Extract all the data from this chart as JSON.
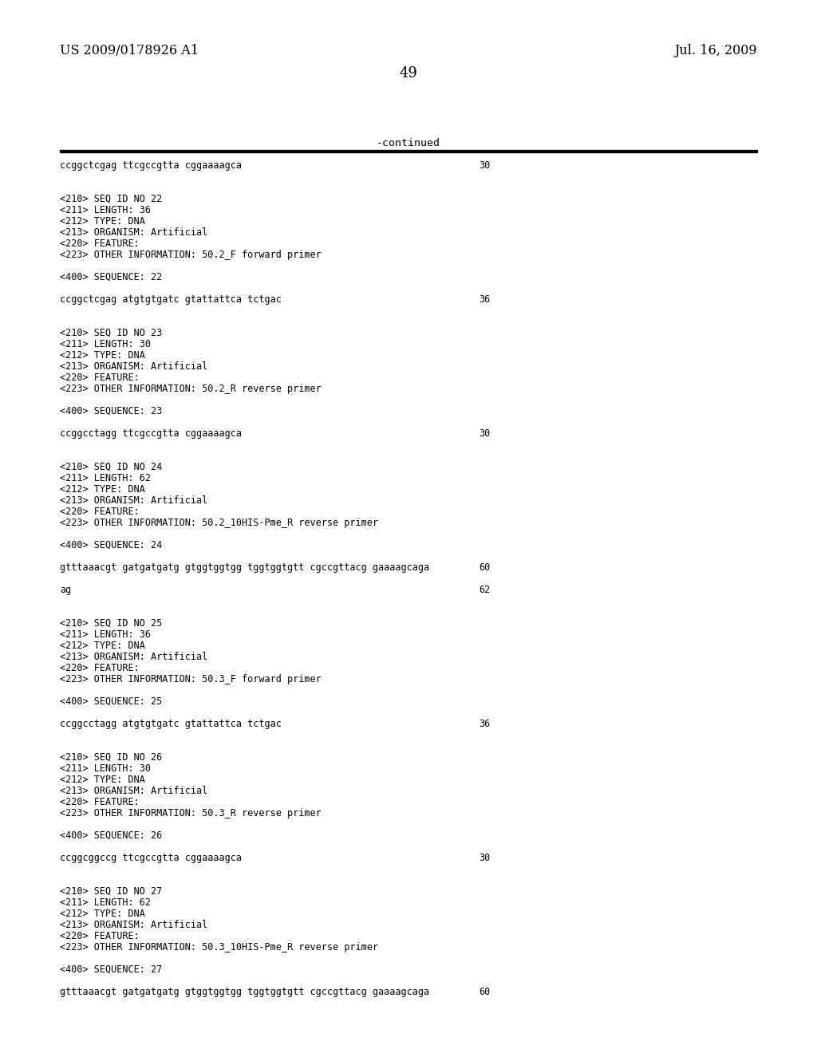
{
  "background_color": "#ffffff",
  "header_left": "US 2009/0178926 A1",
  "header_right": "Jul. 16, 2009",
  "page_number": "49",
  "continued_label": "-continued",
  "content": [
    {
      "type": "sequence",
      "text": "ccggctcgag ttcgccgtta cggaaaagca",
      "number": "30"
    },
    {
      "type": "blank"
    },
    {
      "type": "blank"
    },
    {
      "type": "meta",
      "text": "<210> SEQ ID NO 22"
    },
    {
      "type": "meta",
      "text": "<211> LENGTH: 36"
    },
    {
      "type": "meta",
      "text": "<212> TYPE: DNA"
    },
    {
      "type": "meta",
      "text": "<213> ORGANISM: Artificial"
    },
    {
      "type": "meta",
      "text": "<220> FEATURE:"
    },
    {
      "type": "meta",
      "text": "<223> OTHER INFORMATION: 50.2_F forward primer"
    },
    {
      "type": "blank"
    },
    {
      "type": "meta",
      "text": "<400> SEQUENCE: 22"
    },
    {
      "type": "blank"
    },
    {
      "type": "sequence",
      "text": "ccggctcgag atgtgtgatc gtattattca tctgac",
      "number": "36"
    },
    {
      "type": "blank"
    },
    {
      "type": "blank"
    },
    {
      "type": "meta",
      "text": "<210> SEQ ID NO 23"
    },
    {
      "type": "meta",
      "text": "<211> LENGTH: 30"
    },
    {
      "type": "meta",
      "text": "<212> TYPE: DNA"
    },
    {
      "type": "meta",
      "text": "<213> ORGANISM: Artificial"
    },
    {
      "type": "meta",
      "text": "<220> FEATURE:"
    },
    {
      "type": "meta",
      "text": "<223> OTHER INFORMATION: 50.2_R reverse primer"
    },
    {
      "type": "blank"
    },
    {
      "type": "meta",
      "text": "<400> SEQUENCE: 23"
    },
    {
      "type": "blank"
    },
    {
      "type": "sequence",
      "text": "ccggcctagg ttcgccgtta cggaaaagca",
      "number": "30"
    },
    {
      "type": "blank"
    },
    {
      "type": "blank"
    },
    {
      "type": "meta",
      "text": "<210> SEQ ID NO 24"
    },
    {
      "type": "meta",
      "text": "<211> LENGTH: 62"
    },
    {
      "type": "meta",
      "text": "<212> TYPE: DNA"
    },
    {
      "type": "meta",
      "text": "<213> ORGANISM: Artificial"
    },
    {
      "type": "meta",
      "text": "<220> FEATURE:"
    },
    {
      "type": "meta",
      "text": "<223> OTHER INFORMATION: 50.2_10HIS-Pme_R reverse primer"
    },
    {
      "type": "blank"
    },
    {
      "type": "meta",
      "text": "<400> SEQUENCE: 24"
    },
    {
      "type": "blank"
    },
    {
      "type": "sequence",
      "text": "gtttaaacgt gatgatgatg gtggtggtgg tggtggtgtt cgccgttacg gaaaagcaga",
      "number": "60"
    },
    {
      "type": "blank"
    },
    {
      "type": "sequence",
      "text": "ag",
      "number": "62"
    },
    {
      "type": "blank"
    },
    {
      "type": "blank"
    },
    {
      "type": "meta",
      "text": "<210> SEQ ID NO 25"
    },
    {
      "type": "meta",
      "text": "<211> LENGTH: 36"
    },
    {
      "type": "meta",
      "text": "<212> TYPE: DNA"
    },
    {
      "type": "meta",
      "text": "<213> ORGANISM: Artificial"
    },
    {
      "type": "meta",
      "text": "<220> FEATURE:"
    },
    {
      "type": "meta",
      "text": "<223> OTHER INFORMATION: 50.3_F forward primer"
    },
    {
      "type": "blank"
    },
    {
      "type": "meta",
      "text": "<400> SEQUENCE: 25"
    },
    {
      "type": "blank"
    },
    {
      "type": "sequence",
      "text": "ccggcctagg atgtgtgatc gtattattca tctgac",
      "number": "36"
    },
    {
      "type": "blank"
    },
    {
      "type": "blank"
    },
    {
      "type": "meta",
      "text": "<210> SEQ ID NO 26"
    },
    {
      "type": "meta",
      "text": "<211> LENGTH: 30"
    },
    {
      "type": "meta",
      "text": "<212> TYPE: DNA"
    },
    {
      "type": "meta",
      "text": "<213> ORGANISM: Artificial"
    },
    {
      "type": "meta",
      "text": "<220> FEATURE:"
    },
    {
      "type": "meta",
      "text": "<223> OTHER INFORMATION: 50.3_R reverse primer"
    },
    {
      "type": "blank"
    },
    {
      "type": "meta",
      "text": "<400> SEQUENCE: 26"
    },
    {
      "type": "blank"
    },
    {
      "type": "sequence",
      "text": "ccggcggccg ttcgccgtta cggaaaagca",
      "number": "30"
    },
    {
      "type": "blank"
    },
    {
      "type": "blank"
    },
    {
      "type": "meta",
      "text": "<210> SEQ ID NO 27"
    },
    {
      "type": "meta",
      "text": "<211> LENGTH: 62"
    },
    {
      "type": "meta",
      "text": "<212> TYPE: DNA"
    },
    {
      "type": "meta",
      "text": "<213> ORGANISM: Artificial"
    },
    {
      "type": "meta",
      "text": "<220> FEATURE:"
    },
    {
      "type": "meta",
      "text": "<223> OTHER INFORMATION: 50.3_10HIS-Pme_R reverse primer"
    },
    {
      "type": "blank"
    },
    {
      "type": "meta",
      "text": "<400> SEQUENCE: 27"
    },
    {
      "type": "blank"
    },
    {
      "type": "sequence",
      "text": "gtttaaacgt gatgatgatg gtggtggtgg tggtggtgtt cgccgttacg gaaaagcaga",
      "number": "60"
    }
  ]
}
